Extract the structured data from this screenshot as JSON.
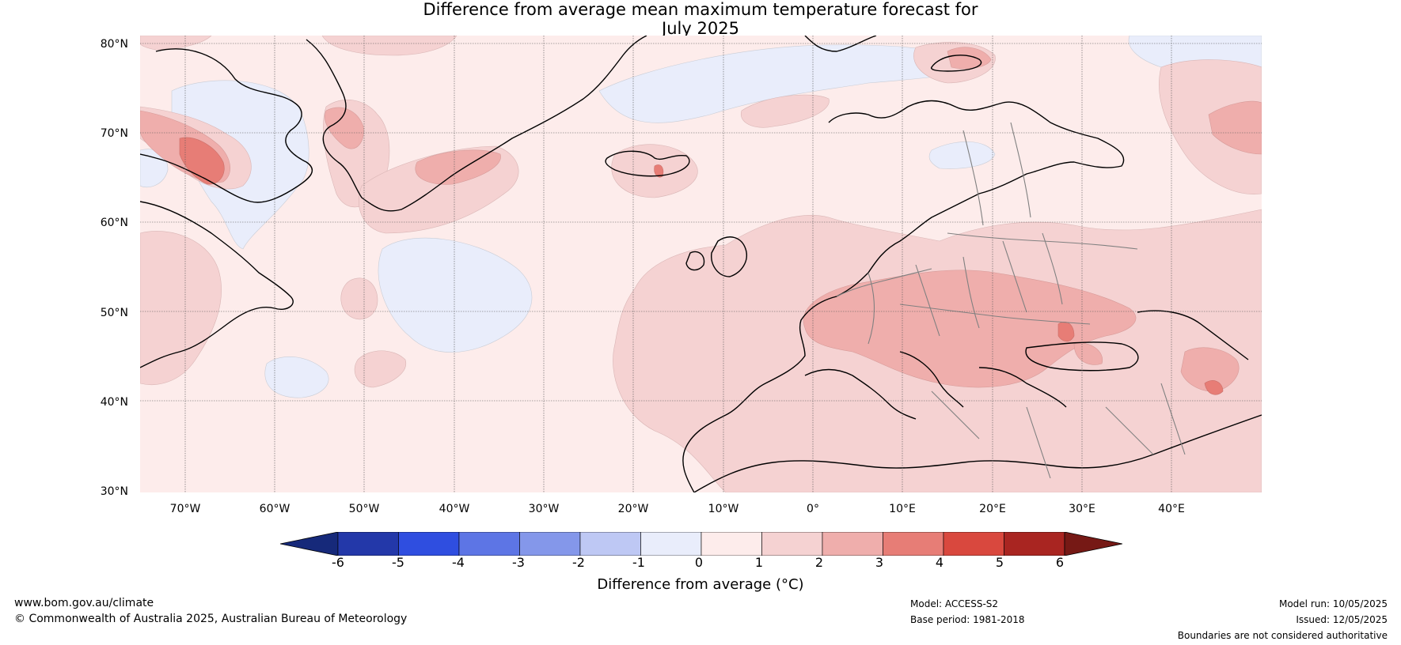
{
  "title": {
    "line1": "Difference from average mean maximum temperature forecast for",
    "line2": "July 2025"
  },
  "map": {
    "lat_labels": [
      "80°N",
      "70°N",
      "60°N",
      "50°N",
      "40°N",
      "30°N"
    ],
    "lon_labels": [
      "70°W",
      "60°W",
      "50°W",
      "40°W",
      "30°W",
      "20°W",
      "10°W",
      "0°",
      "10°E",
      "20°E",
      "30°E",
      "40°E"
    ],
    "extent": {
      "lon_min": -75,
      "lon_max": 50,
      "lat_min": 30,
      "lat_max": 81
    }
  },
  "colorbar": {
    "ticks": [
      "-6",
      "-5",
      "-4",
      "-3",
      "-2",
      "-1",
      "0",
      "1",
      "2",
      "3",
      "4",
      "5",
      "6"
    ],
    "label": "Difference from average (°C)",
    "colors": [
      "#16297a",
      "#2338a9",
      "#2f4ee0",
      "#5d75e5",
      "#8497ea",
      "#bec8f4",
      "#e9edfb",
      "#fdeceb",
      "#f5d2d2",
      "#efaeac",
      "#e77d76",
      "#d9483e",
      "#a92521",
      "#761915"
    ]
  },
  "footer": {
    "website": "www.bom.gov.au/climate",
    "copyright": "© Commonwealth of Australia 2025, Australian Bureau of Meteorology",
    "model": "Model: ACCESS-S2",
    "base_period": "Base period: 1981-2018",
    "model_run": "Model run: 10/05/2025",
    "issued": "Issued: 12/05/2025",
    "disclaimer": "Boundaries are not considered authoritative"
  }
}
